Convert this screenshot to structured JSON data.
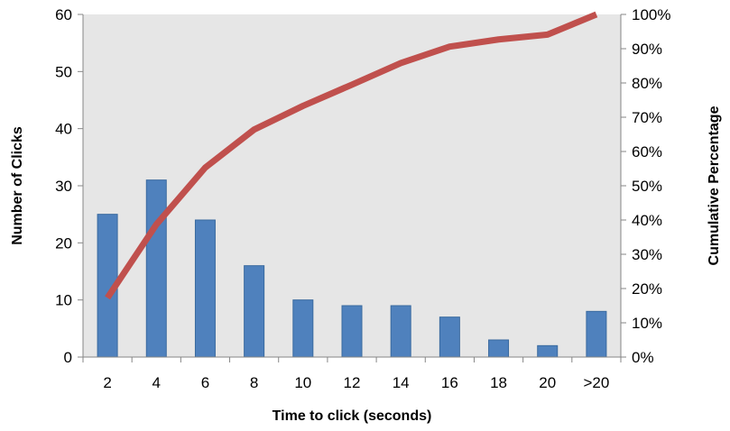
{
  "chart_data": {
    "type": "bar",
    "categories": [
      "2",
      "4",
      "6",
      "8",
      "10",
      "12",
      "14",
      "16",
      "18",
      "20",
      ">20"
    ],
    "series": [
      {
        "values": [
          25,
          31,
          24,
          16,
          10,
          9,
          9,
          7,
          3,
          2,
          8
        ],
        "axis": "left",
        "kind": "bar",
        "color": "#4F81BD"
      },
      {
        "values": [
          17.3,
          38.7,
          55.3,
          66.4,
          73.3,
          79.5,
          85.8,
          90.6,
          92.7,
          94.1,
          100
        ],
        "axis": "right",
        "kind": "line",
        "color": "#C0504D"
      }
    ],
    "xlabel": "Time to click (seconds)",
    "ylabel": "Number of Clicks",
    "y2label": "Cumulative Percentage",
    "ylim": [
      0,
      60
    ],
    "yticks": [
      "0",
      "10",
      "20",
      "30",
      "40",
      "50",
      "60"
    ],
    "y2lim": [
      0,
      100
    ],
    "y2ticks": [
      "0%",
      "10%",
      "20%",
      "30%",
      "40%",
      "50%",
      "60%",
      "70%",
      "80%",
      "90%",
      "100%"
    ],
    "grid": false,
    "legend": "none",
    "plot_background": "#E6E6E6"
  }
}
